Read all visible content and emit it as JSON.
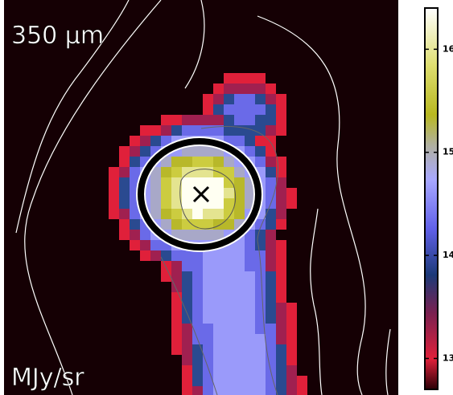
{
  "chart_data": {
    "type": "image",
    "title": "350 μm",
    "unit_label": "MJy/sr",
    "clim": [
      12.7,
      16.4
    ],
    "cticks": [
      13,
      14,
      15,
      16
    ]
  }
}
